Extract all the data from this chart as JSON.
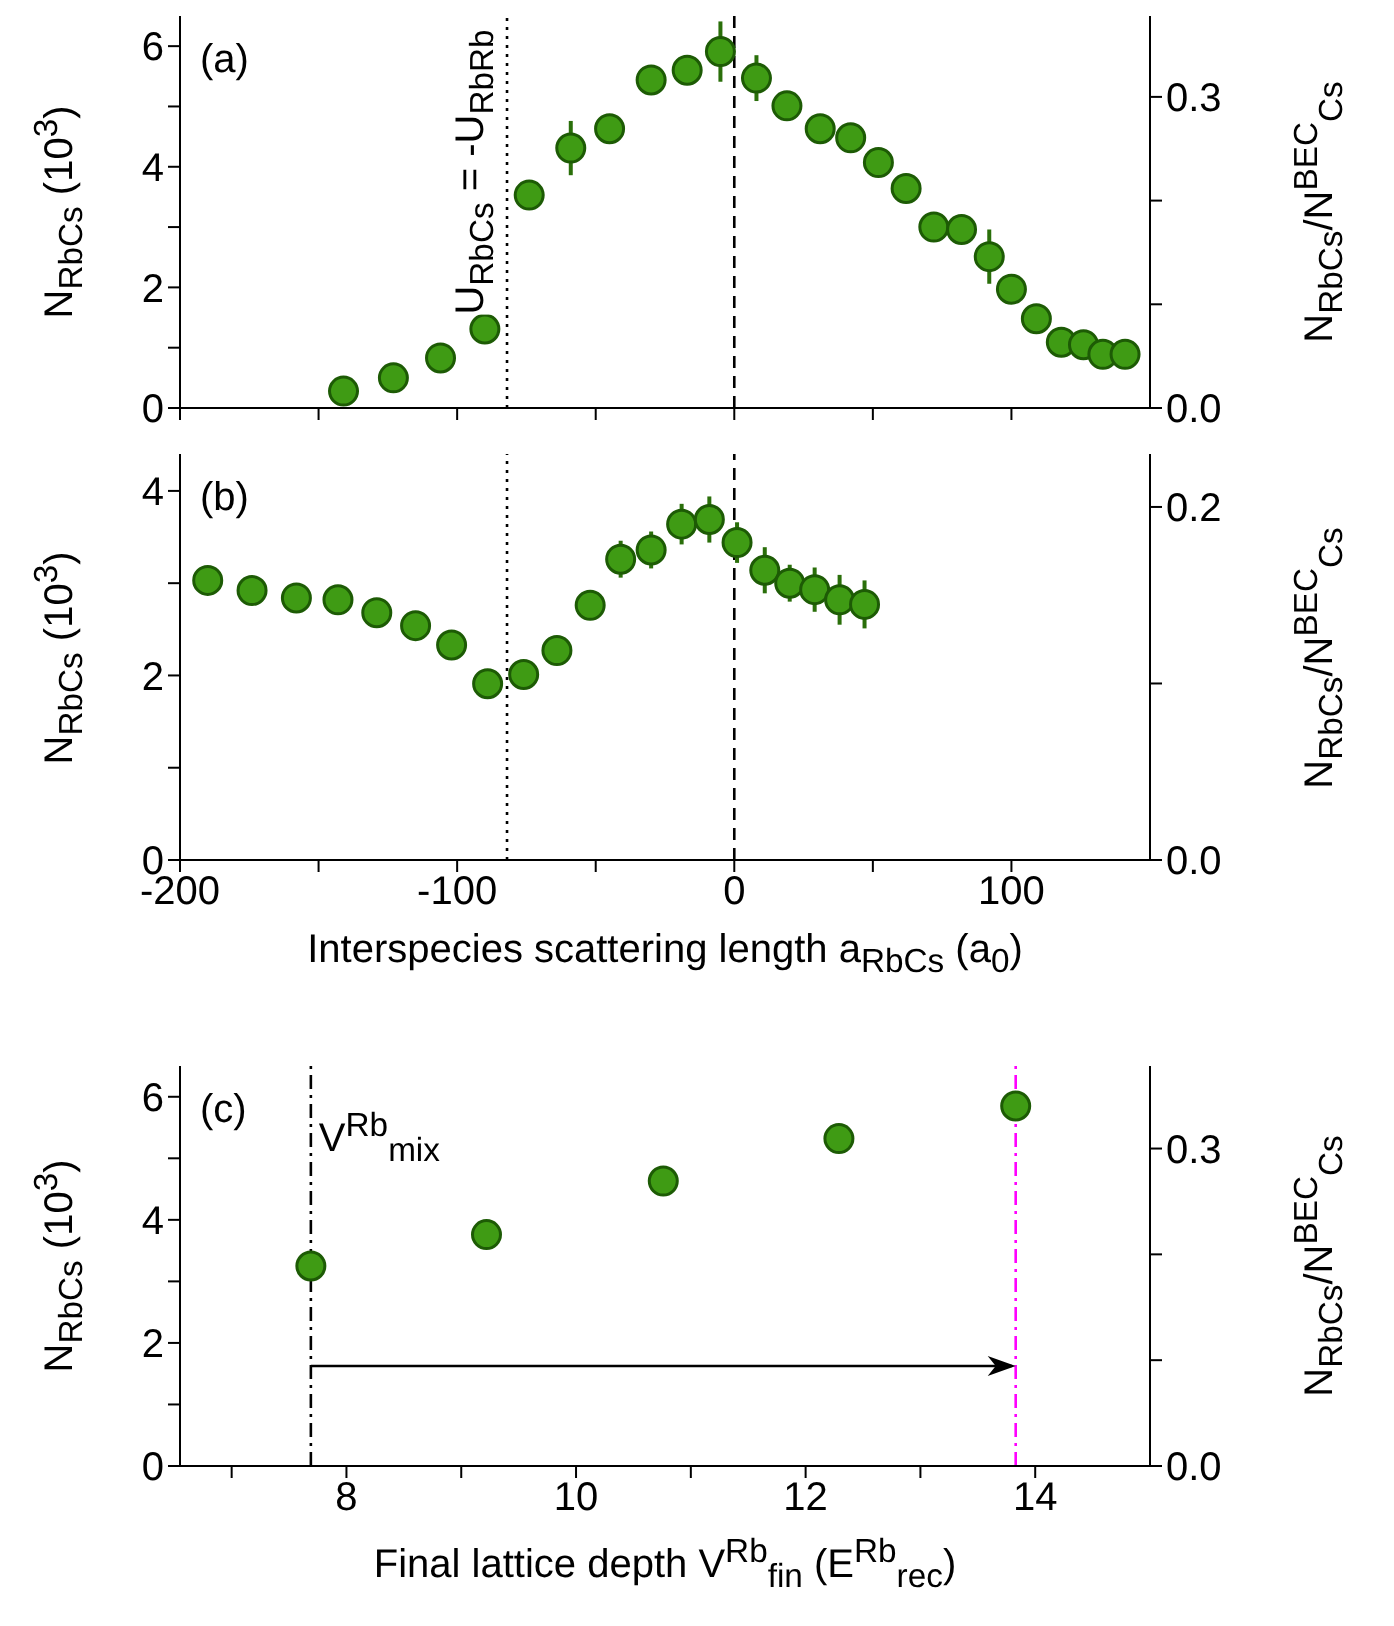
{
  "chart_data": [
    {
      "type": "scatter",
      "color": "#3f9b14",
      "x": [
        -141,
        -123,
        -106,
        -90,
        -74,
        -59,
        -45,
        -30,
        -17,
        -5,
        8,
        19,
        31,
        42,
        52,
        62,
        72,
        82,
        92,
        100,
        109,
        118,
        126,
        133,
        141
      ],
      "values": [
        0.28,
        0.5,
        0.83,
        1.31,
        3.53,
        4.31,
        4.63,
        5.44,
        5.6,
        5.91,
        5.47,
        5.01,
        4.63,
        4.48,
        4.07,
        3.64,
        3.0,
        2.96,
        2.51,
        1.97,
        1.48,
        1.09,
        1.05,
        0.89,
        0.89
      ],
      "errors": [
        null,
        null,
        null,
        null,
        null,
        0.45,
        null,
        null,
        null,
        0.5,
        0.38,
        null,
        null,
        null,
        null,
        null,
        null,
        null,
        0.45,
        null,
        null,
        null,
        null,
        null,
        null
      ],
      "xlim": [
        -200,
        150
      ],
      "xticks": [
        -200,
        {
          "value": -150,
          "label": null
        },
        -100,
        {
          "value": -50,
          "label": null
        },
        0,
        {
          "value": 50,
          "label": null
        },
        100
      ],
      "ylim": [
        0,
        6.5
      ],
      "yticks": [
        0,
        {
          "value": 1,
          "label": null
        },
        2,
        {
          "value": 3,
          "label": null
        },
        4,
        {
          "value": 5,
          "label": null
        },
        6
      ],
      "y2lim": [
        0,
        0.378
      ],
      "y2ticks": [
        {
          "value": 0,
          "label": "0.0"
        },
        {
          "value": 0.1,
          "label": null
        },
        {
          "value": 0.2,
          "label": null
        },
        {
          "value": 0.3,
          "label": "0.3"
        }
      ],
      "ylabel": "N$_{RbCs}$ (10$^{3}$)",
      "y2label": "N$_{RbCs}$/N$^{BEC}$$_{Cs}$",
      "annotations": [
        "(a)"
      ],
      "ref_lines": [
        {
          "axis": "x",
          "value": -82,
          "label": "U$_{RbCs}$ = -U$_{RbRb}$",
          "line_style": "dotted",
          "color": "#000000"
        },
        {
          "axis": "x",
          "value": 0,
          "line_style": "dashed",
          "color": "#000000"
        }
      ],
      "tick_labels": "y",
      "grid": false,
      "legend": false
    },
    {
      "type": "scatter",
      "color": "#3f9b14",
      "x": [
        -190,
        -174,
        -158,
        -143,
        -129,
        -115,
        -102,
        -89,
        -76,
        -64,
        -52,
        -41,
        -30,
        -19,
        -9,
        1,
        11,
        20,
        29,
        38,
        47
      ],
      "values": [
        3.03,
        2.92,
        2.84,
        2.82,
        2.68,
        2.54,
        2.33,
        1.91,
        2.01,
        2.27,
        2.76,
        3.26,
        3.36,
        3.64,
        3.69,
        3.44,
        3.14,
        3.0,
        2.93,
        2.82,
        2.77
      ],
      "errors": [
        null,
        null,
        null,
        null,
        null,
        null,
        null,
        null,
        null,
        null,
        null,
        0.2,
        0.2,
        0.22,
        0.25,
        0.22,
        0.25,
        0.2,
        0.24,
        0.27,
        0.26
      ],
      "xlim": [
        -200,
        150
      ],
      "xticks": [
        -200,
        {
          "value": -150,
          "label": null
        },
        -100,
        {
          "value": -50,
          "label": null
        },
        0,
        {
          "value": 50,
          "label": null
        },
        100
      ],
      "ylim": [
        0,
        4.4
      ],
      "yticks": [
        0,
        {
          "value": 1,
          "label": null
        },
        2,
        {
          "value": 3,
          "label": null
        },
        4
      ],
      "y2lim": [
        0,
        0.23
      ],
      "y2ticks": [
        {
          "value": 0,
          "label": "0.0"
        },
        {
          "value": 0.1,
          "label": null
        },
        {
          "value": 0.2,
          "label": "0.2"
        }
      ],
      "xlabel": "Interspecies scattering length a$_{RbCs}$ (a$_{0}$)",
      "ylabel": "N$_{RbCs}$ (10$^{3}$)",
      "y2label": "N$_{RbCs}$/N$^{BEC}$$_{Cs}$",
      "annotations": [
        "(b)"
      ],
      "ref_lines": [
        {
          "axis": "x",
          "value": -82,
          "line_style": "dotted",
          "color": "#000000"
        },
        {
          "axis": "x",
          "value": 0,
          "line_style": "dashed",
          "color": "#000000"
        }
      ],
      "grid": false,
      "legend": false
    },
    {
      "type": "scatter",
      "color": "#3f9b14",
      "x": [
        7.69,
        9.22,
        10.76,
        12.29,
        13.83
      ],
      "values": [
        3.25,
        3.76,
        4.63,
        5.32,
        5.85
      ],
      "xlim": [
        6.55,
        15
      ],
      "xticks": [
        {
          "value": 7,
          "label": null
        },
        8,
        {
          "value": 9,
          "label": null
        },
        10,
        {
          "value": 11,
          "label": null
        },
        12,
        {
          "value": 13,
          "label": null
        },
        14
      ],
      "ylim": [
        0,
        6.5
      ],
      "yticks": [
        0,
        {
          "value": 1,
          "label": null
        },
        2,
        {
          "value": 3,
          "label": null
        },
        4,
        {
          "value": 5,
          "label": null
        },
        6
      ],
      "y2lim": [
        0,
        0.378
      ],
      "y2ticks": [
        {
          "value": 0,
          "label": "0.0"
        },
        {
          "value": 0.1,
          "label": null
        },
        {
          "value": 0.2,
          "label": null
        },
        {
          "value": 0.3,
          "label": "0.3"
        }
      ],
      "xlabel": "Final lattice depth V$^{Rb}$$_{fin}$ (E$^{Rb}$$_{rec}$)",
      "ylabel": "N$_{RbCs}$ (10$^{3}$)",
      "y2label": "N$_{RbCs}$/N$^{BEC}$$_{Cs}$",
      "annotations": [
        "(c)"
      ],
      "ref_lines": [
        {
          "axis": "x",
          "value": 7.69,
          "label": "V$^{Rb}$$_{mix}$",
          "line_style": "dashdot",
          "color": "#000000"
        },
        {
          "axis": "x",
          "value": 13.83,
          "line_style": "dashdot",
          "color": "#ff00ff"
        }
      ],
      "grid": false,
      "legend": false
    }
  ]
}
